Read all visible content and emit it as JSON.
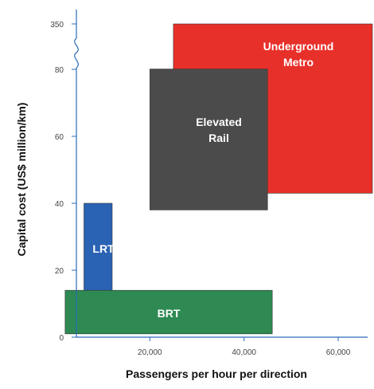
{
  "chart_data": {
    "type": "box-range",
    "title": "",
    "xlabel": "Passengers per hour per direction",
    "ylabel": "Capital cost (US$ million/km)",
    "x_ticks": [
      {
        "value": 20000,
        "label": "20,000"
      },
      {
        "value": 40000,
        "label": "40,000"
      },
      {
        "value": 60000,
        "label": "60,000"
      }
    ],
    "y_ticks": [
      {
        "value": 0,
        "label": "0"
      },
      {
        "value": 20,
        "label": "20"
      },
      {
        "value": 40,
        "label": "40"
      },
      {
        "value": 60,
        "label": "60"
      },
      {
        "value": 80,
        "label": "80"
      },
      {
        "value": 350,
        "label": "350"
      }
    ],
    "xlim": [
      0,
      70000
    ],
    "y_axis_break": {
      "between": [
        80,
        350
      ],
      "note": "axis break symbol; values above break compressed"
    },
    "series": [
      {
        "name": "Underground Metro",
        "label_lines": [
          "Underground",
          "Metro"
        ],
        "color": "#e8302a",
        "x_range": [
          25000,
          70000
        ],
        "y_range": [
          43,
          350
        ]
      },
      {
        "name": "Elevated Rail",
        "label_lines": [
          "Elevated",
          "Rail"
        ],
        "color": "#4b4b4b",
        "x_range": [
          20000,
          45000
        ],
        "y_range": [
          38,
          82
        ]
      },
      {
        "name": "LRT",
        "label_lines": [
          "LRT"
        ],
        "color": "#2a62b4",
        "x_range": [
          6000,
          12000
        ],
        "y_range": [
          12,
          40
        ]
      },
      {
        "name": "BRT",
        "label_lines": [
          "BRT"
        ],
        "color": "#2e8a52",
        "x_range": [
          2000,
          46000
        ],
        "y_range": [
          1,
          14
        ]
      }
    ]
  }
}
